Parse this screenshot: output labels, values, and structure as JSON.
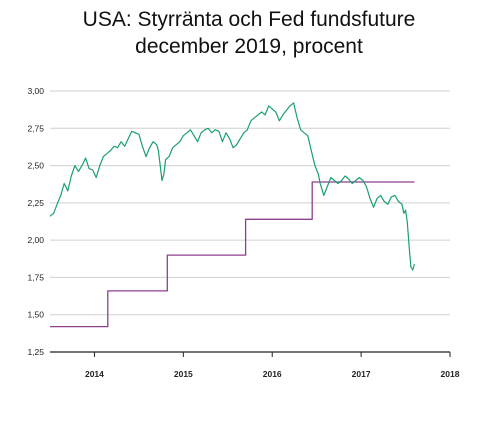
{
  "title_lines": [
    "USA: Styrränta och Fed fundsfuture",
    "december 2019, procent"
  ],
  "colors": {
    "policy_rate": "#8e3f8e",
    "futures": "#1a9e74",
    "grid": "#d0d0d0",
    "axis": "#222222"
  },
  "chart_data": {
    "type": "line",
    "title": "USA: Styrränta och Fed fundsfuture december 2019, procent",
    "xlabel": "",
    "ylabel": "",
    "ylim": [
      1.25,
      3.0
    ],
    "yticks": [
      1.25,
      1.5,
      1.75,
      2.0,
      2.25,
      2.5,
      2.75,
      3.0
    ],
    "ytick_labels": [
      "1,25",
      "1,50",
      "1,75",
      "2,00",
      "2,25",
      "2,50",
      "2,75",
      "3,00"
    ],
    "xlim": [
      2013.5,
      2018.0
    ],
    "xticks": [
      2014.0,
      2015.0,
      2016.0,
      2017.0,
      2018.0
    ],
    "xtick_labels": [
      "2014",
      "2015",
      "2016",
      "2017",
      "2018"
    ],
    "grid": "horizontal",
    "legend": "none",
    "series": [
      {
        "key": "policy_rate",
        "style": "step",
        "x": [
          2013.5,
          2014.15,
          2014.15,
          2014.82,
          2014.82,
          2015.7,
          2015.7,
          2016.45,
          2016.45,
          2017.6
        ],
        "y": [
          1.42,
          1.42,
          1.66,
          1.66,
          1.9,
          1.9,
          2.14,
          2.14,
          2.39,
          2.39
        ]
      },
      {
        "key": "futures",
        "style": "line",
        "x": [
          2013.5,
          2013.54,
          2013.58,
          2013.62,
          2013.66,
          2013.7,
          2013.74,
          2013.78,
          2013.82,
          2013.86,
          2013.9,
          2013.94,
          2013.98,
          2014.02,
          2014.06,
          2014.1,
          2014.14,
          2014.18,
          2014.22,
          2014.26,
          2014.3,
          2014.34,
          2014.38,
          2014.42,
          2014.46,
          2014.5,
          2014.54,
          2014.58,
          2014.62,
          2014.66,
          2014.7,
          2014.72,
          2014.74,
          2014.76,
          2014.78,
          2014.8,
          2014.84,
          2014.88,
          2014.92,
          2014.96,
          2015.0,
          2015.04,
          2015.08,
          2015.12,
          2015.16,
          2015.2,
          2015.24,
          2015.28,
          2015.32,
          2015.36,
          2015.4,
          2015.44,
          2015.48,
          2015.52,
          2015.56,
          2015.6,
          2015.64,
          2015.68,
          2015.72,
          2015.76,
          2015.8,
          2015.84,
          2015.88,
          2015.92,
          2015.96,
          2016.0,
          2016.04,
          2016.08,
          2016.12,
          2016.16,
          2016.2,
          2016.24,
          2016.28,
          2016.32,
          2016.36,
          2016.4,
          2016.44,
          2016.46,
          2016.48,
          2016.5,
          2016.52,
          2016.54,
          2016.58,
          2016.62,
          2016.66,
          2016.7,
          2016.74,
          2016.78,
          2016.82,
          2016.86,
          2016.9,
          2016.94,
          2016.98,
          2017.02,
          2017.06,
          2017.1,
          2017.14,
          2017.18,
          2017.22,
          2017.26,
          2017.3,
          2017.34,
          2017.38,
          2017.42,
          2017.46,
          2017.48,
          2017.5,
          2017.52,
          2017.54,
          2017.56,
          2017.58,
          2017.6
        ],
        "y": [
          2.16,
          2.18,
          2.24,
          2.3,
          2.38,
          2.33,
          2.43,
          2.5,
          2.46,
          2.5,
          2.55,
          2.48,
          2.47,
          2.42,
          2.5,
          2.56,
          2.58,
          2.6,
          2.63,
          2.62,
          2.66,
          2.63,
          2.68,
          2.73,
          2.72,
          2.71,
          2.63,
          2.56,
          2.62,
          2.66,
          2.64,
          2.6,
          2.5,
          2.4,
          2.44,
          2.54,
          2.56,
          2.62,
          2.64,
          2.66,
          2.7,
          2.72,
          2.74,
          2.7,
          2.66,
          2.72,
          2.74,
          2.75,
          2.72,
          2.74,
          2.73,
          2.66,
          2.72,
          2.68,
          2.62,
          2.64,
          2.68,
          2.72,
          2.74,
          2.8,
          2.82,
          2.84,
          2.86,
          2.84,
          2.9,
          2.88,
          2.86,
          2.8,
          2.84,
          2.87,
          2.9,
          2.92,
          2.82,
          2.74,
          2.72,
          2.7,
          2.6,
          2.55,
          2.5,
          2.47,
          2.44,
          2.38,
          2.3,
          2.36,
          2.42,
          2.4,
          2.38,
          2.4,
          2.43,
          2.41,
          2.38,
          2.4,
          2.42,
          2.4,
          2.36,
          2.28,
          2.22,
          2.28,
          2.3,
          2.26,
          2.24,
          2.29,
          2.3,
          2.26,
          2.24,
          2.18,
          2.2,
          2.12,
          1.96,
          1.82,
          1.8,
          1.84
        ]
      }
    ]
  }
}
